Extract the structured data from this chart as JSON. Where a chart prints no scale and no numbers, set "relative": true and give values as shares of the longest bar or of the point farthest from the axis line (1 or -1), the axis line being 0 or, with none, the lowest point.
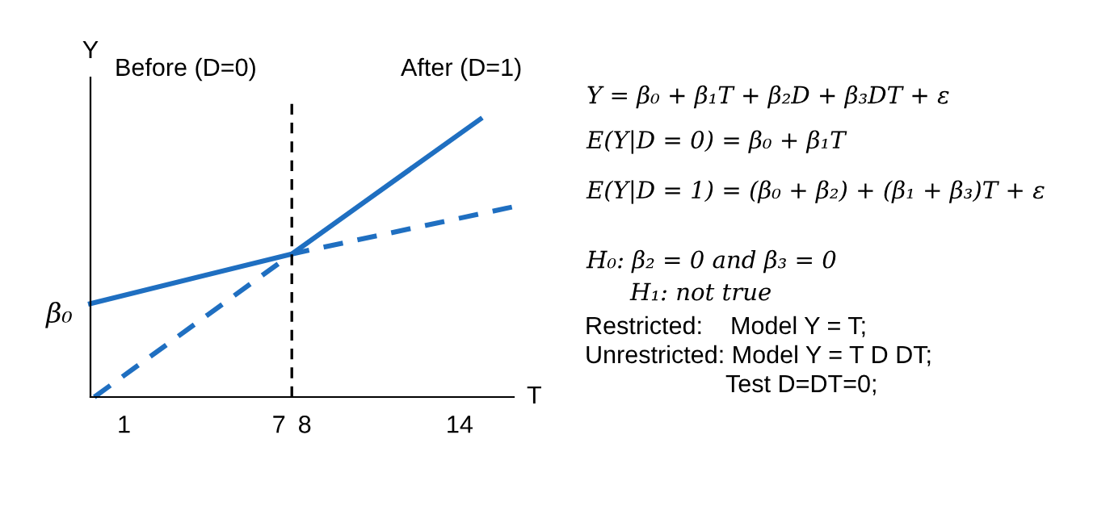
{
  "chart_data": {
    "type": "line",
    "relative": true,
    "xlabel": "T",
    "ylabel": "Y",
    "xlim": [
      -0.3,
      16.1
    ],
    "xticks": [
      1,
      7,
      8,
      14
    ],
    "grid": false,
    "series": [
      {
        "color": "#1f6fc1",
        "line_style": "solid",
        "x": [
          -0.3,
          7.5,
          14.8
        ],
        "values": [
          0.336,
          0.515,
          1
        ]
      },
      {
        "color": "#1f6fc1",
        "line_style": "dashed",
        "x": [
          -0.15,
          7.5,
          16.1
        ],
        "values": [
          0,
          0.515,
          0.685
        ]
      }
    ],
    "ref_lines": [
      {
        "axis": "x",
        "value": 7.5,
        "color": "#000000",
        "line_style": "dashed"
      }
    ],
    "annotations": [
      {
        "text": "β₀",
        "x": -0.3,
        "y": 0.336
      },
      "Before (D=0)",
      "After (D=1)",
      "Y = β₀ + β₁T + β₂D + β₃DT + ε",
      "E(Y|D = 0) = β₀ + β₁T",
      "E(Y|D = 1) = (β₀ + β₂) + (β₁ + β₃)T + ε",
      "H₀: β₂ = 0 and β₃ = 0",
      "H₁: not true",
      "Restricted:    Model Y = T;",
      "Unrestricted: Model Y = T D DT;",
      "Test D=DT=0;"
    ]
  }
}
